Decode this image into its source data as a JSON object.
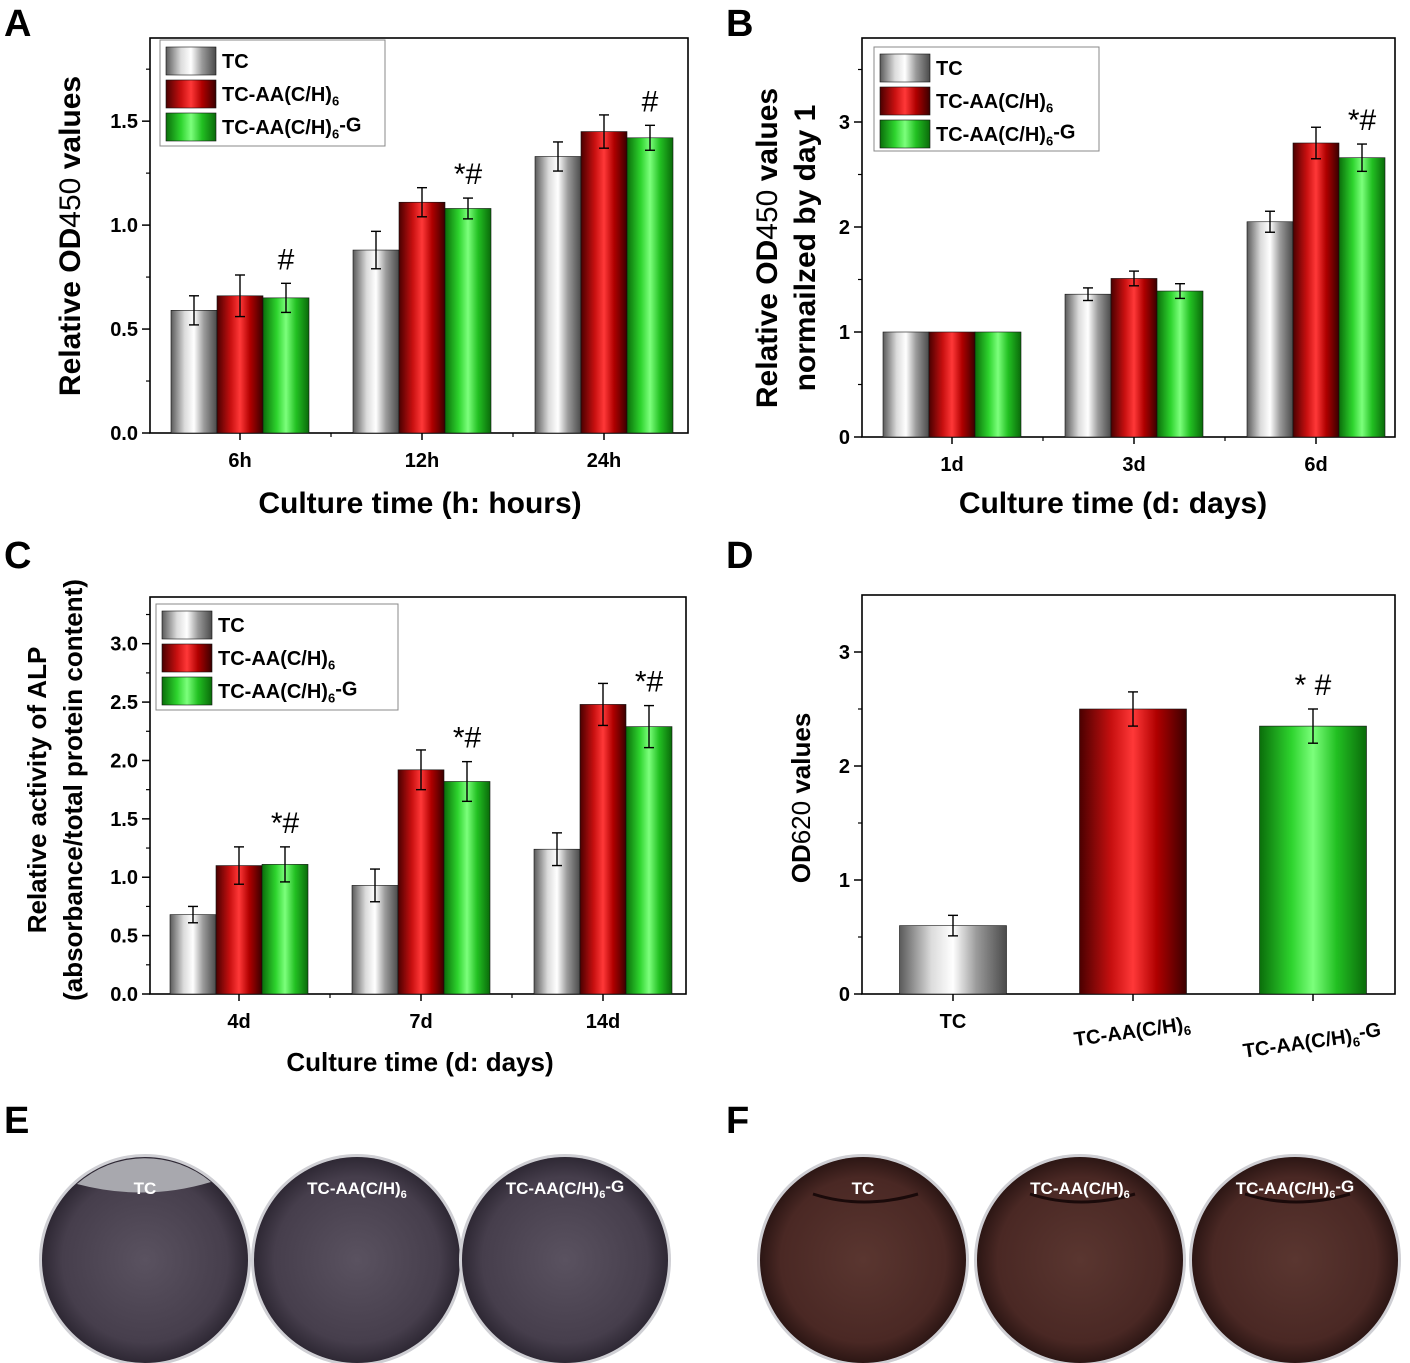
{
  "panel_letters": [
    "A",
    "B",
    "C",
    "D",
    "E",
    "F"
  ],
  "colors": {
    "TC": "#b4b4b4",
    "TC-AA(C/H)6": "#d81c1c",
    "TC-AA(C/H)6-G": "#2ee02e",
    "plate_E": "#4a4150",
    "plate_F": "#4e2a28"
  },
  "chart_data": [
    {
      "type": "bar",
      "panel": "A",
      "categories": [
        "6h",
        "12h",
        "24h"
      ],
      "series": [
        {
          "name": "TC",
          "values": [
            0.59,
            0.88,
            1.33
          ],
          "errors": [
            0.07,
            0.09,
            0.07
          ]
        },
        {
          "name": "TC-AA(C/H)6",
          "values": [
            0.66,
            1.11,
            1.45
          ],
          "errors": [
            0.1,
            0.07,
            0.08
          ]
        },
        {
          "name": "TC-AA(C/H)6-G",
          "values": [
            0.65,
            1.08,
            1.42
          ],
          "errors": [
            0.07,
            0.05,
            0.06
          ]
        }
      ],
      "annotations": [
        {
          "category": "6h",
          "text": "#"
        },
        {
          "category": "12h",
          "text": "*#"
        },
        {
          "category": "24h",
          "text": "#"
        }
      ],
      "xlabel": "Culture time (h: hours)",
      "ylabel": "Relative OD450 values",
      "ylim": [
        0,
        1.9
      ],
      "yticks": [
        "0.0",
        "0.5",
        "1.0",
        "1.5"
      ],
      "legend": "top-left",
      "grid": false
    },
    {
      "type": "bar",
      "panel": "B",
      "categories": [
        "1d",
        "3d",
        "6d"
      ],
      "series": [
        {
          "name": "TC",
          "values": [
            1.0,
            1.36,
            2.05
          ],
          "errors": [
            0,
            0.06,
            0.1
          ]
        },
        {
          "name": "TC-AA(C/H)6",
          "values": [
            1.0,
            1.51,
            2.8
          ],
          "errors": [
            0,
            0.07,
            0.15
          ]
        },
        {
          "name": "TC-AA(C/H)6-G",
          "values": [
            1.0,
            1.39,
            2.66
          ],
          "errors": [
            0,
            0.07,
            0.13
          ]
        }
      ],
      "annotations": [
        {
          "category": "6d",
          "text": "*#"
        }
      ],
      "xlabel": "Culture time (d: days)",
      "ylabel": [
        "Relative OD450 values",
        "normailzed by day 1"
      ],
      "ylim": [
        0,
        3.8
      ],
      "yticks": [
        "0",
        "1",
        "2",
        "3"
      ],
      "legend": "top-left",
      "grid": false
    },
    {
      "type": "bar",
      "panel": "C",
      "categories": [
        "4d",
        "7d",
        "14d"
      ],
      "series": [
        {
          "name": "TC",
          "values": [
            0.68,
            0.93,
            1.24
          ],
          "errors": [
            0.07,
            0.14,
            0.14
          ]
        },
        {
          "name": "TC-AA(C/H)6",
          "values": [
            1.1,
            1.92,
            2.48
          ],
          "errors": [
            0.16,
            0.17,
            0.18
          ]
        },
        {
          "name": "TC-AA(C/H)6-G",
          "values": [
            1.11,
            1.82,
            2.29
          ],
          "errors": [
            0.15,
            0.17,
            0.18
          ]
        }
      ],
      "annotations": [
        {
          "category": "4d",
          "text": "*#"
        },
        {
          "category": "7d",
          "text": "*#"
        },
        {
          "category": "14d",
          "text": "*#"
        }
      ],
      "xlabel": "Culture time  (d: days)",
      "ylabel": [
        "Relative activity of ALP",
        "(absorbance/total protein content)"
      ],
      "ylim": [
        0,
        3.4
      ],
      "yticks": [
        "0.0",
        "0.5",
        "1.0",
        "1.5",
        "2.0",
        "2.5",
        "3.0"
      ],
      "legend": "top-left",
      "grid": false
    },
    {
      "type": "bar",
      "panel": "D",
      "categories": [
        "TC",
        "TC-AA(C/H)6",
        "TC-AA(C/H)6-G"
      ],
      "values": [
        0.6,
        2.5,
        2.35
      ],
      "errors": [
        0.09,
        0.15,
        0.15
      ],
      "annotations": [
        {
          "category": "TC-AA(C/H)6-G",
          "text": "* #"
        }
      ],
      "xlabel": "",
      "ylabel": "OD620 values",
      "ylim": [
        0,
        3.5
      ],
      "yticks": [
        "0",
        "1",
        "2",
        "3"
      ],
      "grid": false
    }
  ],
  "plates": {
    "E": [
      "TC",
      "TC-AA(C/H)6",
      "TC-AA(C/H)6-G"
    ],
    "F": [
      "TC",
      "TC-AA(C/H)6",
      "TC-AA(C/H)6-G"
    ]
  }
}
